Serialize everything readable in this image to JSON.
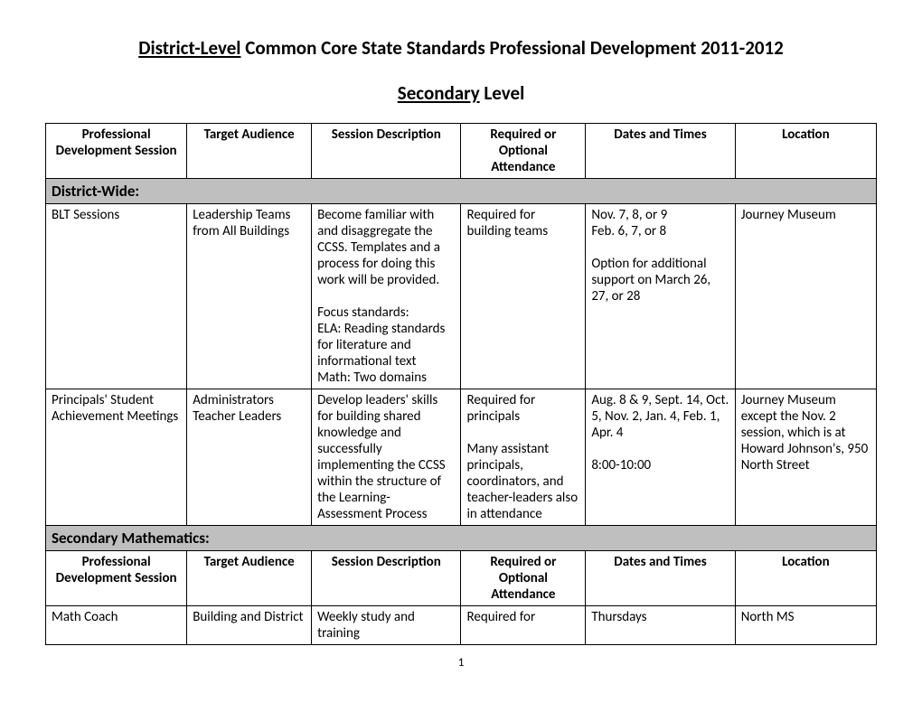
{
  "title_underlined": "District-Level",
  "title_rest": " Common Core State Standards Professional Development   2011-2012",
  "subtitle_underlined": "Secondary",
  "subtitle_rest": " Level",
  "headers": {
    "c1": "Professional Development Session",
    "c2": "Target Audience",
    "c3": "Session Description",
    "c4": "Required or Optional Attendance",
    "c5": "Dates and Times",
    "c6": "Location"
  },
  "section1_label": "District-Wide:",
  "row1": {
    "c1": "BLT Sessions",
    "c2": "Leadership Teams from All Buildings",
    "c3": "Become familiar with and disaggregate the CCSS. Templates and a process for doing this work will be provided.\n\nFocus standards:\nELA: Reading standards for literature and informational text\nMath: Two domains",
    "c4": "Required for building teams",
    "c5": "Nov. 7, 8, or 9\nFeb. 6, 7, or 8\n\nOption for additional support on March 26, 27, or 28",
    "c6": "Journey Museum"
  },
  "row2": {
    "c1": "Principals' Student Achievement Meetings",
    "c2": "Administrators\nTeacher Leaders",
    "c3": "Develop leaders' skills for building shared knowledge and successfully implementing the CCSS within the structure of the Learning-Assessment Process",
    "c4": "Required for principals\n\nMany assistant principals, coordinators, and teacher-leaders also in attendance",
    "c5": "Aug. 8 & 9, Sept. 14, Oct. 5, Nov. 2, Jan. 4, Feb. 1, Apr. 4\n\n8:00-10:00",
    "c6": "Journey Museum except the Nov. 2 session, which is at Howard Johnson's, 950 North Street"
  },
  "section2_label": "Secondary Mathematics:",
  "row3": {
    "c1": "Math Coach",
    "c2": "Building and District",
    "c3": "Weekly study and training",
    "c4": "Required for",
    "c5": "Thursdays",
    "c6": "North MS"
  },
  "page_number": "1"
}
